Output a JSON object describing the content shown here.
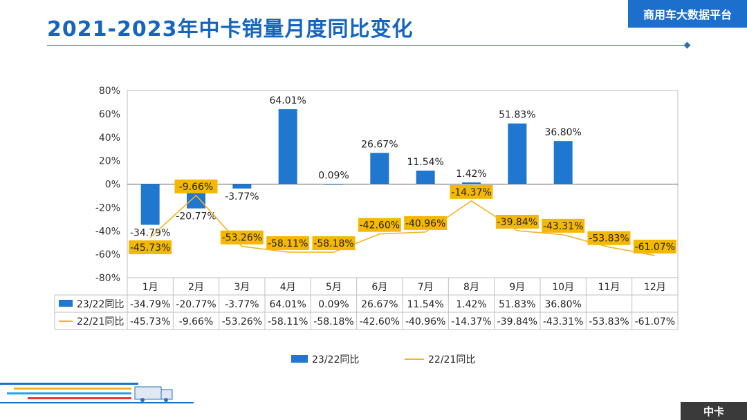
{
  "header": {
    "title": "2021-2023年中卡销量月度同比变化",
    "platform": "商用车大数据平台"
  },
  "footer": {
    "badge": "中卡"
  },
  "colors": {
    "bar": "#1f77d0",
    "line": "#f4b324",
    "label_bg": "#f5b800",
    "title": "#1565c0"
  },
  "chart_data": {
    "type": "bar",
    "title": "",
    "xlabel": "",
    "ylabel": "",
    "ylim": [
      -80,
      80
    ],
    "yticks": [
      "80%",
      "60%",
      "40%",
      "20%",
      "0%",
      "-20%",
      "-40%",
      "-60%",
      "-80%"
    ],
    "categories": [
      "1月",
      "2月",
      "3月",
      "4月",
      "5月",
      "6月",
      "7月",
      "8月",
      "9月",
      "10月",
      "11月",
      "12月"
    ],
    "series": [
      {
        "name": "23/22同比",
        "kind": "bar",
        "values": [
          -34.79,
          -20.77,
          -3.77,
          64.01,
          0.09,
          26.67,
          11.54,
          1.42,
          51.83,
          36.8,
          null,
          null
        ],
        "labels": [
          "-34.79%",
          "-20.77%",
          "-3.77%",
          "64.01%",
          "0.09%",
          "26.67%",
          "11.54%",
          "1.42%",
          "51.83%",
          "36.80%",
          "",
          ""
        ]
      },
      {
        "name": "22/21同比",
        "kind": "line",
        "values": [
          -45.73,
          -9.66,
          -53.26,
          -58.11,
          -58.18,
          -42.6,
          -40.96,
          -14.37,
          -39.84,
          -43.31,
          -53.83,
          -61.07
        ],
        "labels": [
          "-45.73%",
          "-9.66%",
          "-53.26%",
          "-58.11%",
          "-58.18%",
          "-42.60%",
          "-40.96%",
          "-14.37%",
          "-39.84%",
          "-43.31%",
          "-53.83%",
          "-61.07%"
        ]
      }
    ],
    "legend_position": "bottom",
    "grid": false,
    "data_table": true
  }
}
